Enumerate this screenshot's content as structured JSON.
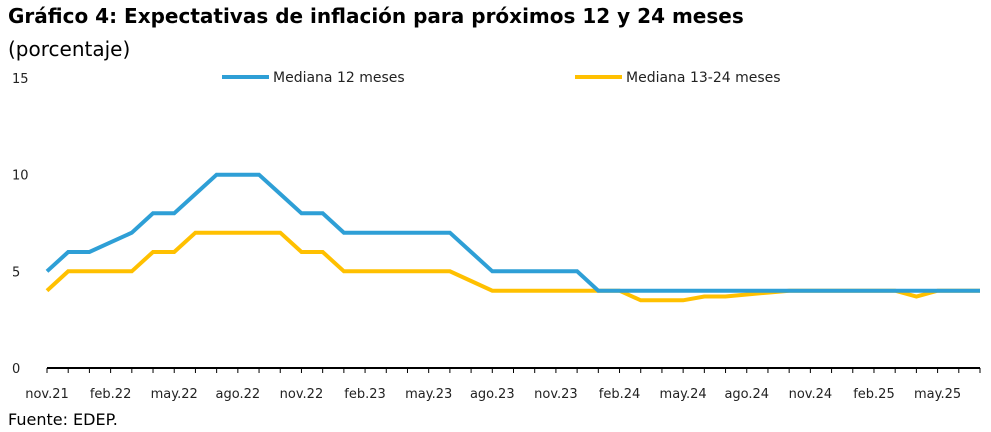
{
  "title": "Gráfico 4: Expectativas de inflación para próximos 12 y 24 meses",
  "subtitle": "(porcentaje)",
  "source": "Fuente: EDEP.",
  "chart_data": {
    "type": "line",
    "title": "Gráfico 4: Expectativas de inflación para próximos 12 y 24 meses",
    "subtitle": "(porcentaje)",
    "ylim": [
      0,
      15
    ],
    "yticks": [
      "0",
      "5",
      "10",
      "15"
    ],
    "grid": false,
    "legend_position": "top",
    "x_tick_labels": [
      "nov.21",
      "feb.22",
      "may.22",
      "ago.22",
      "nov.22",
      "feb.23",
      "may.23",
      "ago.23",
      "nov.23",
      "feb.24",
      "may.24",
      "ago.24",
      "nov.24",
      "feb.25",
      "may.25"
    ],
    "x": [
      "nov.21",
      "dic.21",
      "ene.22",
      "feb.22",
      "mar.22",
      "abr.22",
      "may.22",
      "jun.22",
      "jul.22",
      "ago.22",
      "sep.22",
      "oct.22",
      "nov.22",
      "dic.22",
      "ene.23",
      "feb.23",
      "mar.23",
      "abr.23",
      "may.23",
      "jun.23",
      "jul.23",
      "ago.23",
      "sep.23",
      "oct.23",
      "nov.23",
      "dic.23",
      "ene.24",
      "feb.24",
      "mar.24",
      "abr.24",
      "may.24",
      "jun.24",
      "jul.24",
      "ago.24",
      "sep.24",
      "oct.24",
      "nov.24",
      "dic.24",
      "ene.25",
      "feb.25",
      "mar.25",
      "abr.25",
      "may.25",
      "jun.25",
      "jul.25"
    ],
    "series": [
      {
        "name": "Mediana 12 meses",
        "color": "#2E9FD6",
        "values": [
          5,
          6,
          6,
          6.5,
          7,
          8,
          8,
          9,
          10,
          10,
          10,
          9,
          8,
          8,
          7,
          7,
          7,
          7,
          7,
          7,
          6,
          5,
          5,
          5,
          5,
          5,
          4,
          4,
          4,
          4,
          4,
          4,
          4,
          4,
          4,
          4,
          4,
          4,
          4,
          4,
          4,
          4,
          4,
          4,
          4
        ]
      },
      {
        "name": "Mediana 13-24 meses",
        "color": "#FFC000",
        "values": [
          4,
          5,
          5,
          5,
          5,
          6,
          6,
          7,
          7,
          7,
          7,
          7,
          6,
          6,
          5,
          5,
          5,
          5,
          5,
          5,
          4.5,
          4,
          4,
          4,
          4,
          4,
          4,
          4,
          3.5,
          3.5,
          3.5,
          3.7,
          3.7,
          3.8,
          3.9,
          4,
          4,
          4,
          4,
          4,
          4,
          3.7,
          4,
          4,
          4
        ]
      }
    ]
  }
}
